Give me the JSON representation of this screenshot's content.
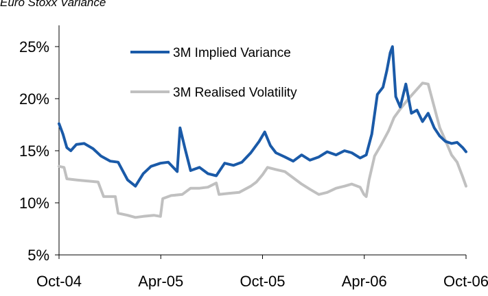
{
  "caption": "Euro Stoxx Variance",
  "chart_data": {
    "type": "line",
    "title": "",
    "xlabel": "",
    "ylabel": "",
    "x_ticks": [
      "Oct-04",
      "Apr-05",
      "Oct-05",
      "Apr-06",
      "Oct-06"
    ],
    "x_range": [
      "2004-10-01",
      "2006-10-01"
    ],
    "y_ticks": [
      "5%",
      "10%",
      "15%",
      "20%",
      "25%"
    ],
    "ylim": [
      5,
      25
    ],
    "grid": false,
    "legend_position": "top-center",
    "series": [
      {
        "name": "3M Implied Variance",
        "color": "#1a5aa8",
        "points": [
          [
            "2004-10-01",
            17.6
          ],
          [
            "2004-10-08",
            16.6
          ],
          [
            "2004-10-15",
            15.3
          ],
          [
            "2004-10-22",
            15.0
          ],
          [
            "2004-11-01",
            15.6
          ],
          [
            "2004-11-15",
            15.7
          ],
          [
            "2004-12-01",
            15.2
          ],
          [
            "2004-12-15",
            14.5
          ],
          [
            "2005-01-01",
            14.0
          ],
          [
            "2005-01-15",
            13.9
          ],
          [
            "2005-02-01",
            12.2
          ],
          [
            "2005-02-15",
            11.6
          ],
          [
            "2005-03-01",
            12.8
          ],
          [
            "2005-03-15",
            13.5
          ],
          [
            "2005-04-01",
            13.8
          ],
          [
            "2005-04-15",
            13.9
          ],
          [
            "2005-05-01",
            13.0
          ],
          [
            "2005-05-06",
            17.2
          ],
          [
            "2005-05-15",
            15.2
          ],
          [
            "2005-05-25",
            13.1
          ],
          [
            "2005-06-10",
            13.4
          ],
          [
            "2005-06-25",
            12.8
          ],
          [
            "2005-07-10",
            12.6
          ],
          [
            "2005-07-25",
            13.8
          ],
          [
            "2005-08-10",
            13.6
          ],
          [
            "2005-08-25",
            13.9
          ],
          [
            "2005-09-10",
            14.8
          ],
          [
            "2005-09-25",
            15.9
          ],
          [
            "2005-10-05",
            16.8
          ],
          [
            "2005-10-15",
            15.5
          ],
          [
            "2005-10-25",
            14.8
          ],
          [
            "2005-11-10",
            14.4
          ],
          [
            "2005-11-25",
            14.0
          ],
          [
            "2005-12-10",
            14.6
          ],
          [
            "2005-12-25",
            14.1
          ],
          [
            "2006-01-10",
            14.4
          ],
          [
            "2006-01-25",
            14.9
          ],
          [
            "2006-02-10",
            14.6
          ],
          [
            "2006-02-25",
            15.0
          ],
          [
            "2006-03-10",
            14.8
          ],
          [
            "2006-03-25",
            14.3
          ],
          [
            "2006-04-05",
            14.6
          ],
          [
            "2006-04-15",
            16.6
          ],
          [
            "2006-04-25",
            20.4
          ],
          [
            "2006-05-05",
            21.1
          ],
          [
            "2006-05-12",
            22.7
          ],
          [
            "2006-05-18",
            24.4
          ],
          [
            "2006-05-22",
            25.0
          ],
          [
            "2006-05-28",
            20.2
          ],
          [
            "2006-06-05",
            19.2
          ],
          [
            "2006-06-15",
            21.4
          ],
          [
            "2006-06-25",
            18.6
          ],
          [
            "2006-07-05",
            18.9
          ],
          [
            "2006-07-15",
            17.8
          ],
          [
            "2006-07-25",
            18.6
          ],
          [
            "2006-08-05",
            17.2
          ],
          [
            "2006-08-15",
            16.4
          ],
          [
            "2006-08-25",
            15.9
          ],
          [
            "2006-09-05",
            15.7
          ],
          [
            "2006-09-15",
            15.8
          ],
          [
            "2006-09-25",
            15.3
          ],
          [
            "2006-10-01",
            14.9
          ]
        ]
      },
      {
        "name": "3M Realised Volatility",
        "color": "#c0c0c0",
        "points": [
          [
            "2004-10-01",
            13.5
          ],
          [
            "2004-10-10",
            13.4
          ],
          [
            "2004-10-15",
            12.3
          ],
          [
            "2004-11-01",
            12.2
          ],
          [
            "2004-11-20",
            12.1
          ],
          [
            "2004-12-10",
            12.0
          ],
          [
            "2004-12-20",
            10.6
          ],
          [
            "2005-01-10",
            10.6
          ],
          [
            "2005-01-15",
            9.0
          ],
          [
            "2005-02-01",
            8.8
          ],
          [
            "2005-02-15",
            8.6
          ],
          [
            "2005-03-01",
            8.7
          ],
          [
            "2005-03-20",
            8.8
          ],
          [
            "2005-04-01",
            8.7
          ],
          [
            "2005-04-05",
            10.4
          ],
          [
            "2005-04-20",
            10.7
          ],
          [
            "2005-05-10",
            10.8
          ],
          [
            "2005-05-25",
            11.4
          ],
          [
            "2005-06-10",
            11.4
          ],
          [
            "2005-06-25",
            11.5
          ],
          [
            "2005-07-10",
            11.9
          ],
          [
            "2005-07-15",
            10.8
          ],
          [
            "2005-08-01",
            10.9
          ],
          [
            "2005-08-20",
            11.0
          ],
          [
            "2005-09-10",
            11.6
          ],
          [
            "2005-09-20",
            12.0
          ],
          [
            "2005-10-01",
            12.7
          ],
          [
            "2005-10-10",
            13.4
          ],
          [
            "2005-10-25",
            13.2
          ],
          [
            "2005-11-10",
            13.0
          ],
          [
            "2005-11-25",
            12.4
          ],
          [
            "2005-12-10",
            11.8
          ],
          [
            "2005-12-25",
            11.3
          ],
          [
            "2006-01-10",
            10.8
          ],
          [
            "2006-01-25",
            11.0
          ],
          [
            "2006-02-10",
            11.4
          ],
          [
            "2006-02-25",
            11.6
          ],
          [
            "2006-03-10",
            11.8
          ],
          [
            "2006-03-25",
            11.5
          ],
          [
            "2006-04-01",
            10.8
          ],
          [
            "2006-04-05",
            10.6
          ],
          [
            "2006-04-10",
            12.2
          ],
          [
            "2006-04-20",
            14.5
          ],
          [
            "2006-05-01",
            15.5
          ],
          [
            "2006-05-15",
            16.9
          ],
          [
            "2006-05-25",
            18.2
          ],
          [
            "2006-06-05",
            19.0
          ],
          [
            "2006-06-20",
            20.0
          ],
          [
            "2006-07-05",
            20.9
          ],
          [
            "2006-07-15",
            21.5
          ],
          [
            "2006-07-25",
            21.4
          ],
          [
            "2006-08-05",
            19.2
          ],
          [
            "2006-08-15",
            17.2
          ],
          [
            "2006-08-25",
            16.0
          ],
          [
            "2006-09-05",
            14.6
          ],
          [
            "2006-09-15",
            13.9
          ],
          [
            "2006-09-25",
            12.5
          ],
          [
            "2006-10-01",
            11.6
          ]
        ]
      }
    ]
  }
}
